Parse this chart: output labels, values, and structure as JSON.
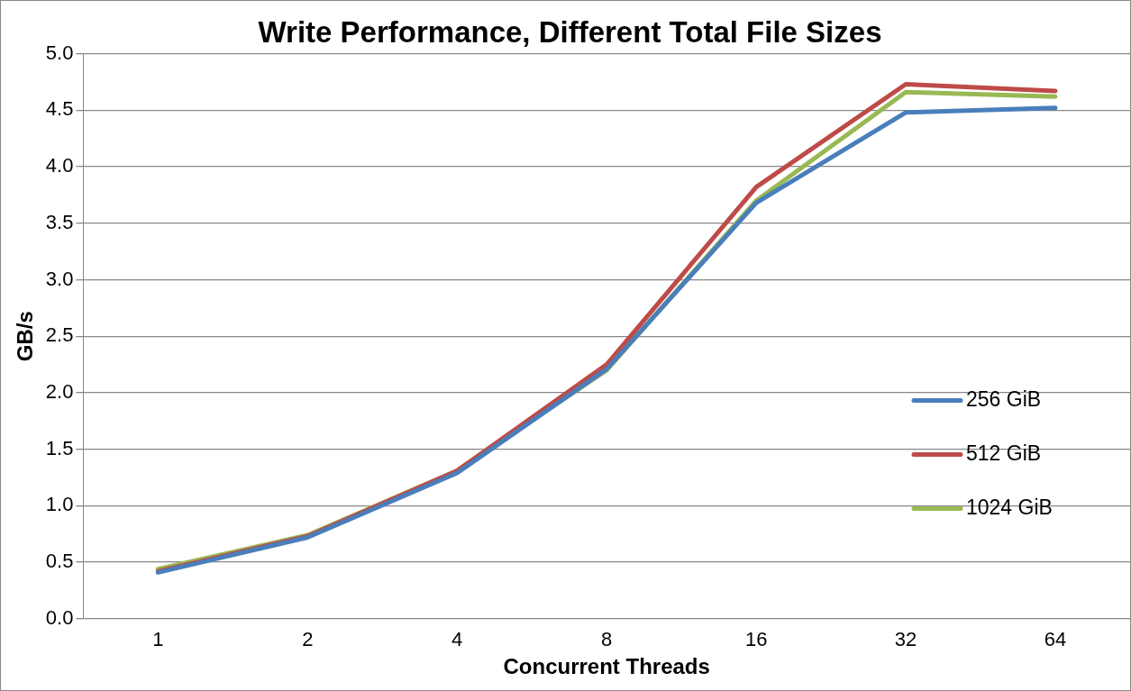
{
  "chart_data": {
    "type": "line",
    "title": "Write Performance, Different Total File Sizes",
    "xlabel": "Concurrent Threads",
    "ylabel": "GB/s",
    "categories": [
      "1",
      "2",
      "4",
      "8",
      "16",
      "32",
      "64"
    ],
    "series": [
      {
        "name": "256 GiB",
        "color": "#4a7ebb",
        "values": [
          0.41,
          0.72,
          1.29,
          2.21,
          3.68,
          4.48,
          4.52
        ]
      },
      {
        "name": "512 GiB",
        "color": "#be4b48",
        "values": [
          0.42,
          0.73,
          1.31,
          2.25,
          3.82,
          4.73,
          4.67
        ]
      },
      {
        "name": "1024 GiB",
        "color": "#98b954",
        "values": [
          0.44,
          0.74,
          1.31,
          2.2,
          3.7,
          4.66,
          4.62
        ]
      }
    ],
    "ylim": [
      0,
      5
    ],
    "yticks": [
      {
        "value": 0,
        "label": "0.0"
      },
      {
        "value": 0.5,
        "label": "0.5"
      },
      {
        "value": 1,
        "label": "1.0"
      },
      {
        "value": 1.5,
        "label": "1.5"
      },
      {
        "value": 2,
        "label": "2.0"
      },
      {
        "value": 2.5,
        "label": "2.5"
      },
      {
        "value": 3,
        "label": "3.0"
      },
      {
        "value": 3.5,
        "label": "3.5"
      },
      {
        "value": 4,
        "label": "4.0"
      },
      {
        "value": 4.5,
        "label": "4.5"
      },
      {
        "value": 5,
        "label": "5.0"
      }
    ],
    "grid": "y",
    "legend": "right",
    "marker": "none",
    "line_style": "solid"
  }
}
